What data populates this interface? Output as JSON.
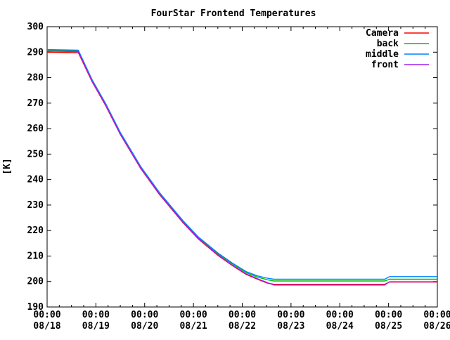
{
  "chart_data": {
    "type": "line",
    "title": "FourStar Frontend Temperatures",
    "ylabel": "[K]",
    "ylim": [
      190,
      300
    ],
    "y_tick_step": 10,
    "xlim_days": [
      0,
      8
    ],
    "x_minor_ticks_per_day": 4,
    "grid": "off",
    "legend_position": "top-right-inside",
    "background_color": "#ffffff",
    "frame_color": "#000000",
    "x_major_labels": [
      {
        "time": "00:00",
        "date": "08/18"
      },
      {
        "time": "00:00",
        "date": "08/19"
      },
      {
        "time": "00:00",
        "date": "08/20"
      },
      {
        "time": "00:00",
        "date": "08/21"
      },
      {
        "time": "00:00",
        "date": "08/22"
      },
      {
        "time": "00:00",
        "date": "08/23"
      },
      {
        "time": "00:00",
        "date": "08/24"
      },
      {
        "time": "00:00",
        "date": "08/25"
      },
      {
        "time": "00:00",
        "date": "08/26"
      }
    ],
    "t_days": [
      0,
      0.64,
      0.92,
      1.2,
      1.5,
      1.92,
      2.3,
      2.78,
      3.1,
      3.5,
      3.8,
      4.08,
      4.3,
      4.51,
      4.65,
      5.0,
      6.0,
      6.92,
      7.02,
      8.0
    ],
    "series": [
      {
        "name": "Camera",
        "color": "#ff0000",
        "values": [
          290.0,
          289.8,
          278.5,
          269.0,
          257.7,
          244.3,
          234.2,
          223.2,
          216.7,
          210.3,
          206.2,
          202.8,
          201.0,
          199.4,
          198.9,
          198.9,
          198.9,
          198.9,
          199.8,
          199.8
        ]
      },
      {
        "name": "back",
        "color": "#00c000",
        "values": [
          290.7,
          290.5,
          279.0,
          269.5,
          258.2,
          244.8,
          234.7,
          223.7,
          217.2,
          210.9,
          206.9,
          203.5,
          201.8,
          200.7,
          200.2,
          200.2,
          200.2,
          200.2,
          200.9,
          200.9
        ]
      },
      {
        "name": "middle",
        "color": "#0080ff",
        "values": [
          291.0,
          290.8,
          279.3,
          269.8,
          258.5,
          245.1,
          235.0,
          224.0,
          217.5,
          211.2,
          207.2,
          203.9,
          202.3,
          201.3,
          200.9,
          200.9,
          200.9,
          200.9,
          201.9,
          201.9
        ]
      },
      {
        "name": "front",
        "color": "#a020f0",
        "values": [
          290.4,
          290.2,
          278.7,
          269.2,
          257.9,
          244.5,
          234.4,
          223.4,
          216.9,
          210.5,
          206.4,
          203.0,
          201.2,
          199.6,
          198.6,
          198.6,
          198.6,
          198.6,
          199.9,
          199.9
        ]
      }
    ]
  }
}
